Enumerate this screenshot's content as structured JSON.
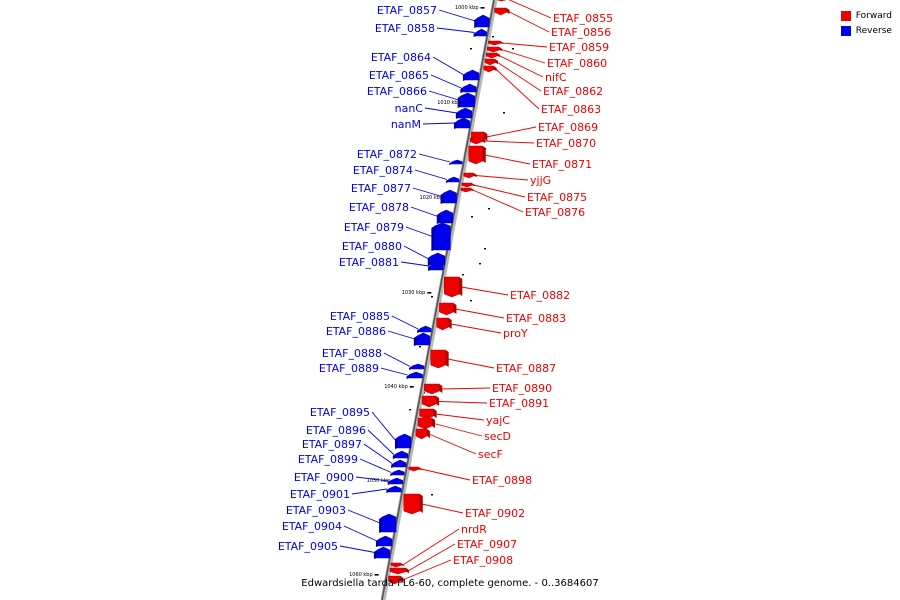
{
  "legend": {
    "forward_label": "Forward",
    "reverse_label": "Reverse",
    "forward_color": "#ee0000",
    "reverse_color": "#0000ee"
  },
  "caption": "Edwardsiella tarda FL6-60, complete genome. - 0..3684607",
  "kbp_ticks": [
    "1000 kbp",
    "1010 kbp",
    "1020 kbp",
    "1030 kbp",
    "1040 kbp",
    "1050 kbp",
    "1060 kbp"
  ],
  "forward_genes": [
    "ETAF_0855",
    "ETAF_0856",
    "ETAF_0859",
    "ETAF_0860",
    "nifC",
    "ETAF_0862",
    "ETAF_0863",
    "ETAF_0869",
    "ETAF_0870",
    "ETAF_0871",
    "yjjG",
    "ETAF_0875",
    "ETAF_0876",
    "ETAF_0882",
    "ETAF_0883",
    "proY",
    "ETAF_0887",
    "ETAF_0890",
    "ETAF_0891",
    "yajC",
    "secD",
    "secF",
    "ETAF_0898",
    "ETAF_0902",
    "nrdR",
    "ETAF_0907",
    "ETAF_0908"
  ],
  "reverse_genes": [
    "ETAF_0857",
    "ETAF_0858",
    "ETAF_0864",
    "ETAF_0865",
    "ETAF_0866",
    "nanC",
    "nanM",
    "ETAF_0872",
    "ETAF_0874",
    "ETAF_0877",
    "ETAF_0878",
    "ETAF_0879",
    "ETAF_0880",
    "ETAF_0881",
    "ETAF_0885",
    "ETAF_0886",
    "ETAF_0888",
    "ETAF_0889",
    "ETAF_0895",
    "ETAF_0896",
    "ETAF_0897",
    "ETAF_0899",
    "ETAF_0900",
    "ETAF_0901",
    "ETAF_0903",
    "ETAF_0904",
    "ETAF_0905"
  ]
}
